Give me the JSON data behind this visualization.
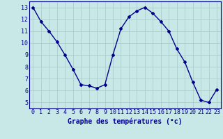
{
  "x": [
    0,
    1,
    2,
    3,
    4,
    5,
    6,
    7,
    8,
    9,
    10,
    11,
    12,
    13,
    14,
    15,
    16,
    17,
    18,
    19,
    20,
    21,
    22,
    23
  ],
  "y": [
    13.0,
    11.8,
    11.0,
    10.1,
    9.0,
    7.8,
    6.5,
    6.4,
    6.2,
    6.5,
    9.0,
    11.2,
    12.2,
    12.7,
    13.0,
    12.5,
    11.8,
    11.0,
    9.5,
    8.4,
    6.7,
    5.2,
    5.0,
    6.1
  ],
  "line_color": "#00008b",
  "marker": "D",
  "marker_size": 2,
  "bg_color": "#c8e8e8",
  "plot_bg_color": "#c8e8e8",
  "grid_color": "#a8c8c8",
  "xlabel": "Graphe des températures (°c)",
  "xlabel_color": "#00008b",
  "xlabel_fontsize": 7,
  "ylabel_ticks": [
    5,
    6,
    7,
    8,
    9,
    10,
    11,
    12,
    13
  ],
  "xlim": [
    -0.5,
    23.5
  ],
  "ylim": [
    4.5,
    13.5
  ],
  "tick_color": "#00008b",
  "tick_fontsize": 6
}
